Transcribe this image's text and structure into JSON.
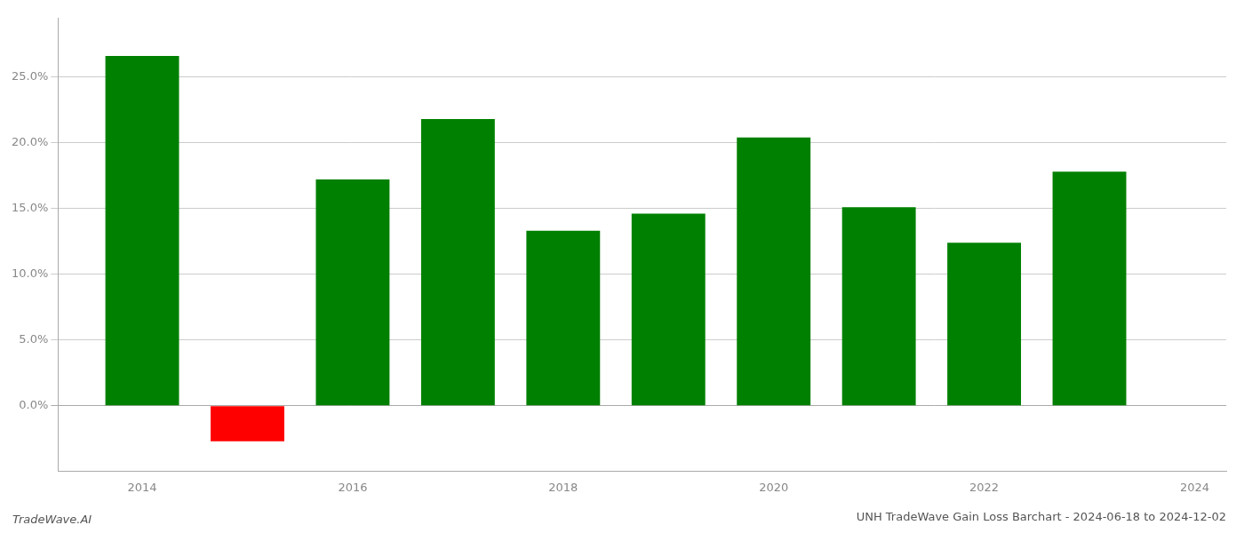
{
  "chart_data": {
    "type": "bar",
    "title": "UNH TradeWave Gain Loss Barchart - 2024-06-18 to 2024-12-02",
    "annotations": [
      "TradeWave.AI"
    ],
    "x": [
      2014,
      2015,
      2016,
      2017,
      2018,
      2019,
      2020,
      2021,
      2022,
      2023
    ],
    "values": [
      0.266,
      -0.027,
      0.172,
      0.218,
      0.133,
      0.146,
      0.204,
      0.151,
      0.124,
      0.178
    ],
    "colors": [
      "#008000",
      "#ff0000",
      "#008000",
      "#008000",
      "#008000",
      "#008000",
      "#008000",
      "#008000",
      "#008000",
      "#008000"
    ],
    "xlim": [
      2013.2,
      2024.3
    ],
    "xticks": [
      2014,
      2016,
      2018,
      2020,
      2022,
      2024
    ],
    "ylim": [
      -0.05,
      0.295
    ],
    "yticks": [
      {
        "value": 0.0,
        "label": "0.0%"
      },
      {
        "value": 0.05,
        "label": "5.0%"
      },
      {
        "value": 0.1,
        "label": "10.0%"
      },
      {
        "value": 0.15,
        "label": "15.0%"
      },
      {
        "value": 0.2,
        "label": "20.0%"
      },
      {
        "value": 0.25,
        "label": "25.0%"
      }
    ],
    "grid": "y"
  }
}
